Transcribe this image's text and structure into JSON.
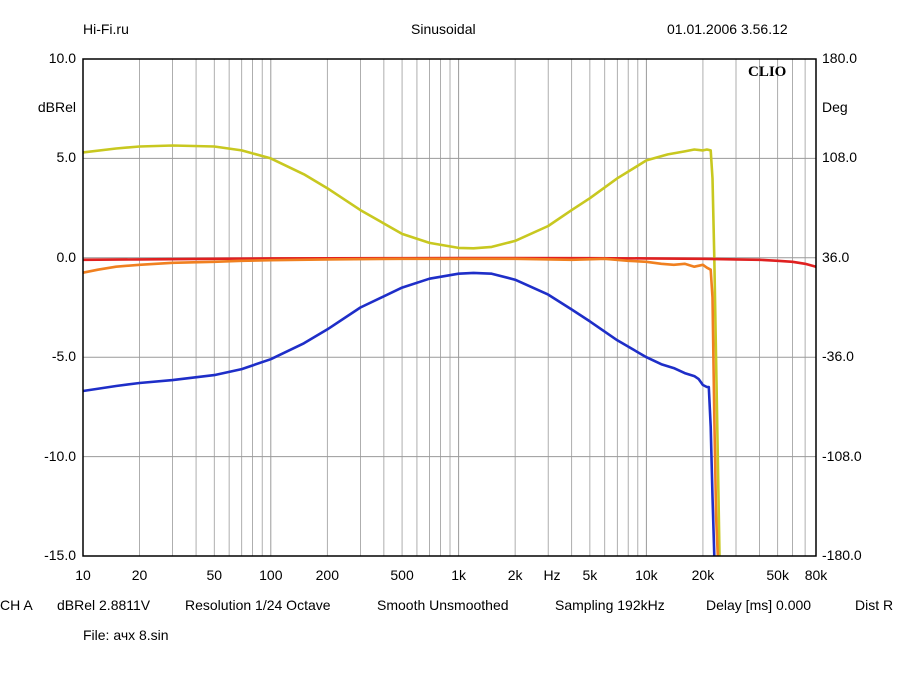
{
  "header": {
    "source": "Hi-Fi.ru",
    "mode": "Sinusoidal",
    "datetime": "01.01.2006 3.56.12"
  },
  "brand": "CLIO",
  "footer": {
    "channel": "CH A",
    "units": "dBRel 2.8811V",
    "resolution": "Resolution 1/24 Octave",
    "smoothing": "Smooth Unsmoothed",
    "sampling": "Sampling 192kHz",
    "delay": "Delay [ms] 0.000",
    "dist": "Dist R",
    "file": "File: ачх 8.sin"
  },
  "chart_data": {
    "type": "line",
    "x_scale": "log",
    "xlim": [
      10,
      80000
    ],
    "ylim_left": [
      -15,
      10
    ],
    "ylim_right": [
      -180,
      180
    ],
    "ylabel_left": "dBRel",
    "ylabel_right": "Deg",
    "x_unit_label": "Hz",
    "grid": true,
    "x_tick_labels": [
      {
        "v": 10,
        "t": "10"
      },
      {
        "v": 20,
        "t": "20"
      },
      {
        "v": 50,
        "t": "50"
      },
      {
        "v": 100,
        "t": "100"
      },
      {
        "v": 200,
        "t": "200"
      },
      {
        "v": 500,
        "t": "500"
      },
      {
        "v": 1000,
        "t": "1k"
      },
      {
        "v": 2000,
        "t": "2k"
      },
      {
        "v": 5000,
        "t": "5k"
      },
      {
        "v": 10000,
        "t": "10k"
      },
      {
        "v": 20000,
        "t": "20k"
      },
      {
        "v": 50000,
        "t": "50k"
      },
      {
        "v": 80000,
        "t": "80k"
      }
    ],
    "y_tick_labels_left": [
      "10.0",
      "5.0",
      "0.0",
      "-5.0",
      "-10.0",
      "-15.0"
    ],
    "y_ticks_left": [
      10,
      5,
      0,
      -5,
      -10,
      -15
    ],
    "y_tick_labels_right": [
      "180.0",
      "108.0",
      "36.0",
      "-36.0",
      "-108.0",
      "-180.0"
    ],
    "series": [
      {
        "color": "#c8c820",
        "x": [
          10,
          15,
          20,
          30,
          50,
          70,
          100,
          150,
          200,
          300,
          500,
          700,
          1000,
          1200,
          1500,
          2000,
          3000,
          4000,
          5000,
          7000,
          10000,
          13000,
          16000,
          18000,
          20000,
          21000,
          22000,
          22500,
          23000,
          24000,
          24500
        ],
        "y": [
          5.3,
          5.5,
          5.6,
          5.65,
          5.6,
          5.4,
          5.0,
          4.2,
          3.5,
          2.4,
          1.2,
          0.75,
          0.5,
          0.48,
          0.55,
          0.85,
          1.6,
          2.4,
          3.0,
          4.0,
          4.9,
          5.2,
          5.35,
          5.45,
          5.4,
          5.45,
          5.4,
          4.0,
          0.0,
          -10.0,
          -15.0
        ]
      },
      {
        "color": "#e02020",
        "x": [
          10,
          20,
          50,
          100,
          500,
          1000,
          5000,
          10000,
          20000,
          30000,
          40000,
          50000,
          60000,
          70000,
          80000
        ],
        "y": [
          -0.1,
          -0.08,
          -0.05,
          -0.03,
          -0.02,
          -0.01,
          -0.02,
          -0.03,
          -0.05,
          -0.08,
          -0.1,
          -0.15,
          -0.2,
          -0.3,
          -0.45
        ]
      },
      {
        "color": "#f08020",
        "x": [
          10,
          12,
          15,
          20,
          30,
          50,
          70,
          100,
          200,
          500,
          1000,
          2000,
          4000,
          6000,
          8000,
          10000,
          12000,
          14000,
          16000,
          18000,
          20000,
          21000,
          22000,
          22500,
          23000,
          23500,
          24000
        ],
        "y": [
          -0.75,
          -0.6,
          -0.45,
          -0.35,
          -0.25,
          -0.2,
          -0.15,
          -0.12,
          -0.08,
          -0.05,
          -0.05,
          -0.05,
          -0.1,
          -0.05,
          -0.15,
          -0.2,
          -0.3,
          -0.35,
          -0.3,
          -0.45,
          -0.35,
          -0.5,
          -0.6,
          -2.0,
          -8.0,
          -13.0,
          -15.0
        ]
      },
      {
        "color": "#1e2ec8",
        "x": [
          10,
          15,
          20,
          30,
          50,
          70,
          100,
          150,
          200,
          300,
          500,
          700,
          1000,
          1200,
          1500,
          2000,
          3000,
          4000,
          5000,
          7000,
          10000,
          12000,
          14000,
          16000,
          18000,
          19000,
          20000,
          21000,
          21500,
          22000,
          22500,
          23000
        ],
        "y": [
          -6.7,
          -6.45,
          -6.3,
          -6.15,
          -5.9,
          -5.6,
          -5.1,
          -4.3,
          -3.6,
          -2.5,
          -1.5,
          -1.05,
          -0.8,
          -0.76,
          -0.8,
          -1.1,
          -1.85,
          -2.6,
          -3.2,
          -4.15,
          -5.0,
          -5.35,
          -5.55,
          -5.8,
          -5.95,
          -6.1,
          -6.4,
          -6.5,
          -6.5,
          -8.5,
          -12.0,
          -15.0
        ]
      }
    ]
  }
}
